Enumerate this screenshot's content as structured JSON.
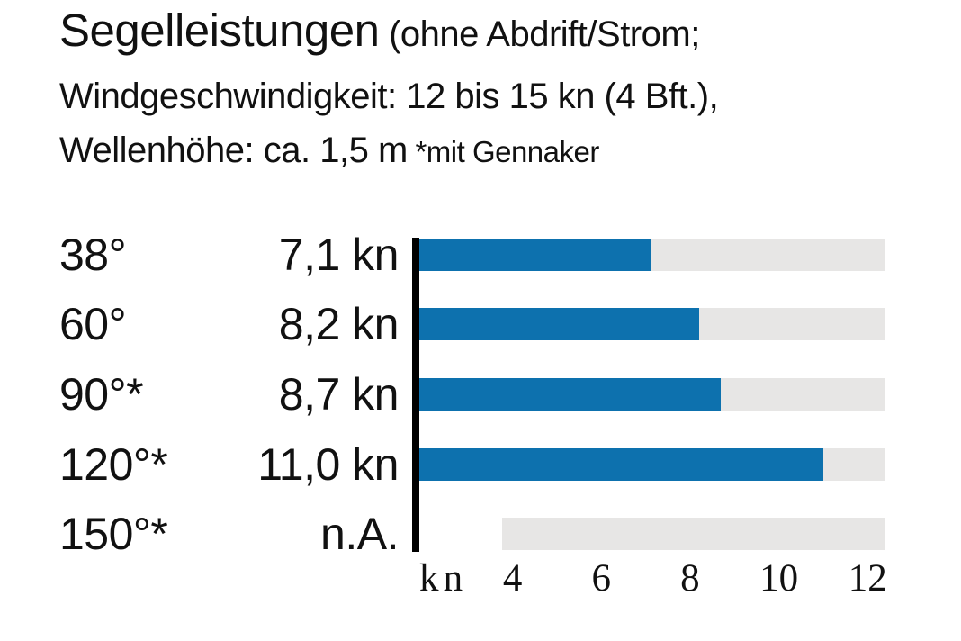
{
  "title": {
    "main": "Segelleistungen",
    "sub1": "(ohne Abdrift/Strom;",
    "line2": "Windgeschwindigkeit: 12 bis 15 kn (4 Bft.),",
    "line3": "Wellenhöhe: ca. 1,5 m",
    "line3_note": "*mit Gennaker"
  },
  "chart_data": {
    "type": "bar",
    "orientation": "horizontal",
    "title": "Segelleistungen (ohne Abdrift/Strom; Windgeschwindigkeit: 12 bis 15 kn (4 Bft.), Wellenhöhe: ca. 1,5 m) *mit Gennaker",
    "categories": [
      "38°",
      "60°",
      "90°*",
      "120°*",
      "150°*"
    ],
    "values": [
      7.1,
      8.2,
      8.7,
      11.0,
      null
    ],
    "value_labels": [
      "7,1 kn",
      "8,2 kn",
      "8,7 kn",
      "11,0 kn",
      "n.A."
    ],
    "unit": "kn",
    "xlabel": "kn",
    "ticks": [
      4,
      6,
      8,
      10,
      12
    ],
    "axis_min": 1.9,
    "axis_max": 12.4,
    "na_track_start_frac": 0.178,
    "grid": false,
    "legend": false,
    "bar_color": "#0d71ae",
    "track_color": "#e7e6e5",
    "axis_line_color": "#000000"
  }
}
